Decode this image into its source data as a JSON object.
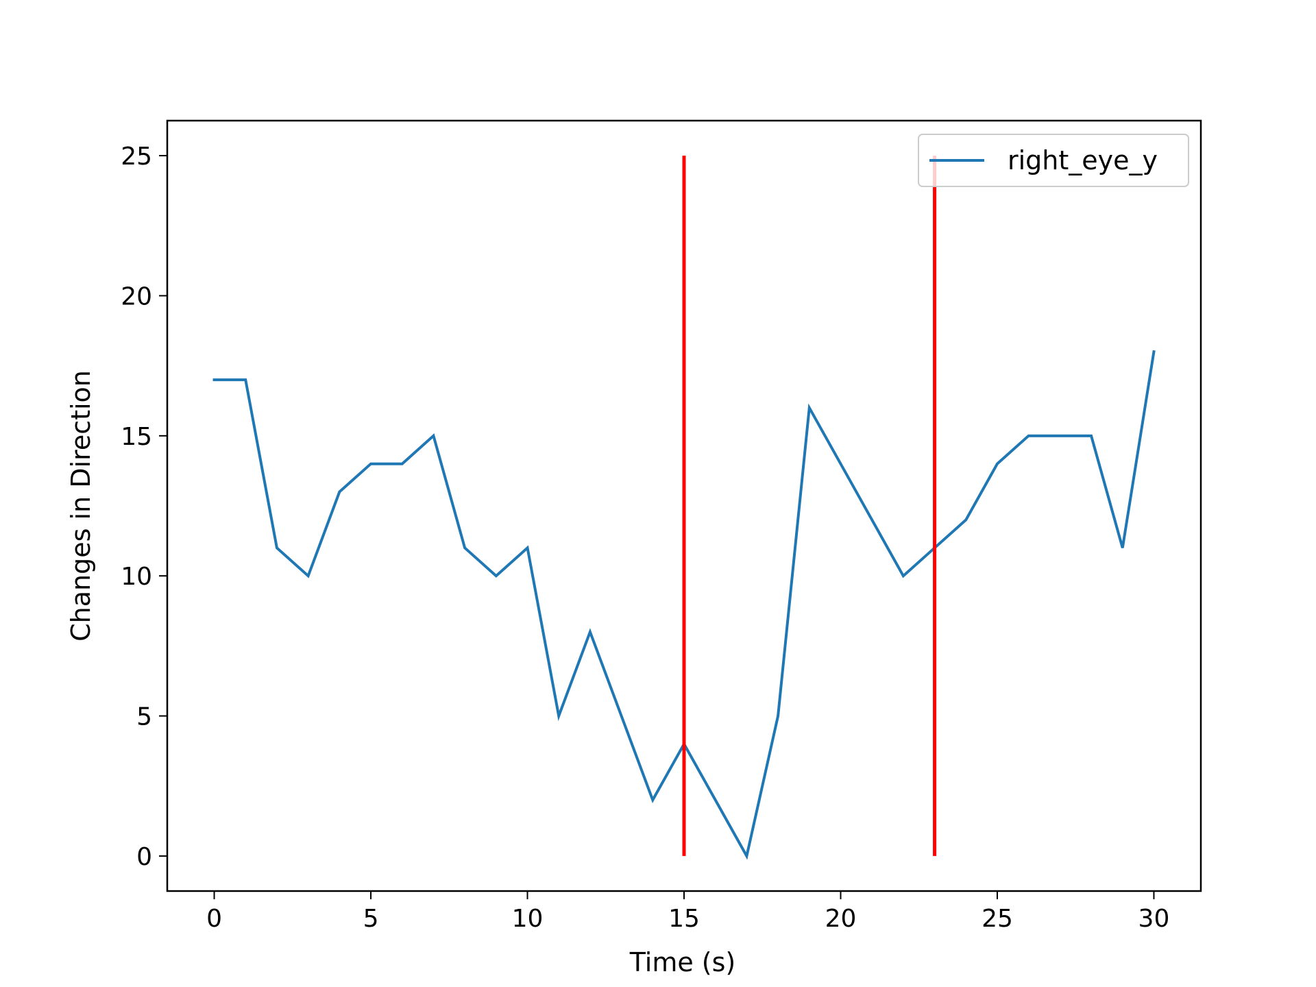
{
  "chart_data": {
    "type": "line",
    "title": "",
    "xlabel": "Time (s)",
    "ylabel": "Changes in Direction",
    "xlim": [
      -1.5,
      31.5
    ],
    "ylim": [
      -1.25,
      26.25
    ],
    "xticks": [
      0,
      5,
      10,
      15,
      20,
      25,
      30
    ],
    "yticks": [
      0,
      5,
      10,
      15,
      20,
      25
    ],
    "grid": false,
    "legend_position": "top-right",
    "series": [
      {
        "name": "right_eye_y",
        "color": "#1f77b4",
        "x": [
          0,
          1,
          2,
          3,
          4,
          5,
          6,
          7,
          8,
          9,
          10,
          11,
          12,
          13,
          14,
          15,
          16,
          17,
          18,
          19,
          20,
          21,
          22,
          23,
          24,
          25,
          26,
          27,
          28,
          29,
          30
        ],
        "y": [
          17,
          17,
          11,
          10,
          13,
          14,
          14,
          15,
          11,
          10,
          11,
          5,
          8,
          5,
          2,
          4,
          2,
          0,
          5,
          16,
          14,
          12,
          10,
          11,
          12,
          14,
          15,
          15,
          15,
          11,
          18
        ]
      }
    ],
    "vlines": [
      {
        "x": 15,
        "ymin": 0,
        "ymax": 25,
        "color": "#ff0000"
      },
      {
        "x": 23,
        "ymin": 0,
        "ymax": 25,
        "color": "#ff0000"
      }
    ]
  }
}
